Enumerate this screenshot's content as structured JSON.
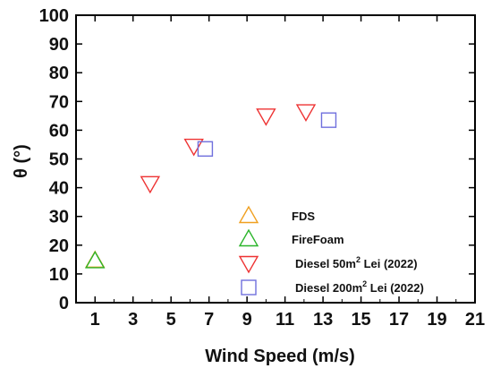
{
  "chart_data": {
    "type": "scatter",
    "xlabel": "Wind Speed (m/s)",
    "ylabel": "θ (°)",
    "xlim": [
      0,
      21
    ],
    "ylim": [
      0,
      100
    ],
    "xticks": [
      1,
      3,
      5,
      7,
      9,
      11,
      13,
      15,
      17,
      19,
      21
    ],
    "yticks": [
      0,
      10,
      20,
      30,
      40,
      50,
      60,
      70,
      80,
      90,
      100
    ],
    "grid": false,
    "legend_position": "bottom-right",
    "series": [
      {
        "name": "FDS",
        "name_parts": [
          "FDS"
        ],
        "marker": "triangle-up",
        "color": "#f0a020",
        "points": [
          {
            "x": 1.0,
            "y": 14.5
          }
        ]
      },
      {
        "name": "FireFoam",
        "name_parts": [
          "FireFoam"
        ],
        "marker": "triangle-up",
        "color": "#2bb52b",
        "points": [
          {
            "x": 1.0,
            "y": 14.5
          }
        ]
      },
      {
        "name": "Diesel 50m2 Lei (2022)",
        "name_parts": [
          "Diesel 50m",
          "2",
          " Lei (2022)"
        ],
        "marker": "triangle-down",
        "color": "#ee3333",
        "points": [
          {
            "x": 3.9,
            "y": 41.5
          },
          {
            "x": 6.2,
            "y": 54.5
          },
          {
            "x": 10.0,
            "y": 65.0
          },
          {
            "x": 12.1,
            "y": 66.5
          }
        ]
      },
      {
        "name": "Diesel 200m2 Lei (2022)",
        "name_parts": [
          "Diesel 200m",
          "2",
          " Lei (2022)"
        ],
        "marker": "square",
        "color": "#7070dd",
        "points": [
          {
            "x": 6.8,
            "y": 53.5
          },
          {
            "x": 13.3,
            "y": 63.5
          }
        ]
      }
    ]
  }
}
